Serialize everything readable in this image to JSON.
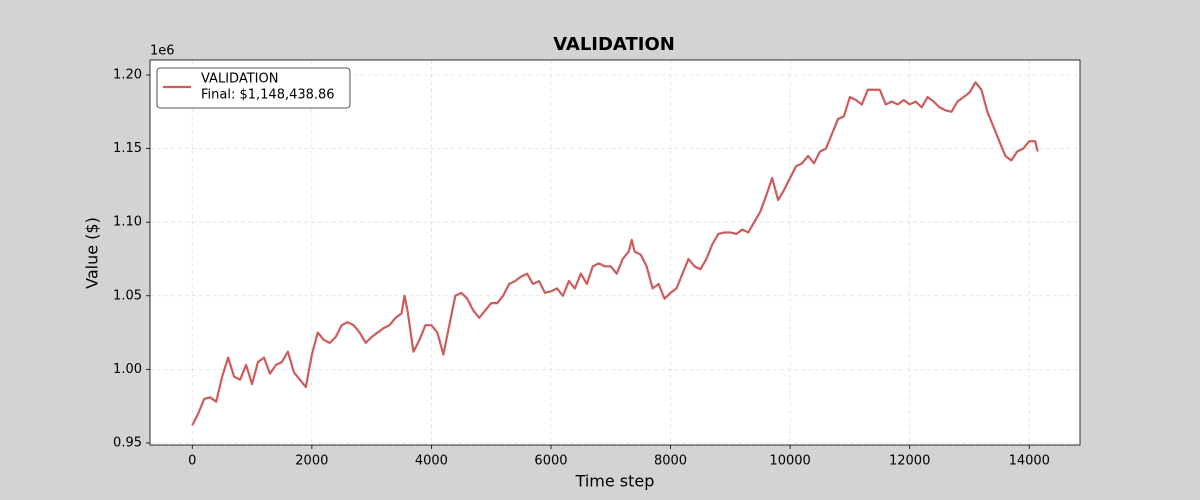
{
  "chart_data": {
    "type": "line",
    "title": "VALIDATION",
    "xlabel": "Time step",
    "ylabel": "Value ($)",
    "y_offset_text": "1e6",
    "legend": "upper left",
    "legend_note": "Final: $1,148,438.86",
    "grid": true,
    "xlim": [
      -707,
      14849
    ],
    "ylim": [
      0.9486,
      1.2102
    ],
    "xticks": [
      0,
      2000,
      4000,
      6000,
      8000,
      10000,
      12000,
      14000
    ],
    "yticks": [
      0.95,
      {
        "value": 1,
        "label": "1.00"
      },
      1.05,
      {
        "value": 1.1,
        "label": "1.10"
      },
      1.15,
      {
        "value": 1.2,
        "label": "1.20"
      }
    ],
    "x": [
      0,
      100,
      200,
      300,
      400,
      500,
      600,
      700,
      800,
      900,
      1000,
      1100,
      1200,
      1300,
      1400,
      1500,
      1600,
      1700,
      1800,
      1900,
      2000,
      2100,
      2200,
      2300,
      2400,
      2500,
      2600,
      2700,
      2800,
      2900,
      3000,
      3100,
      3200,
      3300,
      3400,
      3500,
      3550,
      3600,
      3700,
      3800,
      3900,
      4000,
      4100,
      4200,
      4300,
      4400,
      4500,
      4600,
      4700,
      4800,
      4900,
      5000,
      5100,
      5200,
      5300,
      5400,
      5500,
      5600,
      5700,
      5800,
      5900,
      6000,
      6100,
      6200,
      6300,
      6400,
      6500,
      6600,
      6700,
      6800,
      6900,
      7000,
      7100,
      7200,
      7300,
      7350,
      7400,
      7500,
      7600,
      7700,
      7800,
      7900,
      8000,
      8100,
      8200,
      8300,
      8400,
      8500,
      8600,
      8700,
      8800,
      8900,
      9000,
      9100,
      9200,
      9300,
      9400,
      9500,
      9600,
      9700,
      9800,
      9900,
      10000,
      10100,
      10200,
      10300,
      10400,
      10500,
      10600,
      10700,
      10800,
      10900,
      11000,
      11100,
      11200,
      11300,
      11400,
      11500,
      11600,
      11700,
      11800,
      11900,
      12000,
      12100,
      12200,
      12300,
      12400,
      12500,
      12600,
      12700,
      12800,
      12900,
      13000,
      13100,
      13200,
      13300,
      13400,
      13500,
      13600,
      13700,
      13800,
      13900,
      14000,
      14100,
      14142
    ],
    "series": [
      {
        "name": "VALIDATION",
        "color": "#cd5c5c",
        "values": [
          0.962,
          0.97,
          0.98,
          0.981,
          0.978,
          0.995,
          1.008,
          0.995,
          0.993,
          1.003,
          0.99,
          1.005,
          1.008,
          0.997,
          1.003,
          1.005,
          1.012,
          0.998,
          0.993,
          0.988,
          1.01,
          1.025,
          1.02,
          1.018,
          1.022,
          1.03,
          1.032,
          1.03,
          1.025,
          1.018,
          1.022,
          1.025,
          1.028,
          1.03,
          1.035,
          1.038,
          1.05,
          1.04,
          1.012,
          1.02,
          1.03,
          1.03,
          1.025,
          1.01,
          1.03,
          1.05,
          1.052,
          1.048,
          1.04,
          1.035,
          1.04,
          1.045,
          1.045,
          1.05,
          1.058,
          1.06,
          1.063,
          1.065,
          1.058,
          1.06,
          1.052,
          1.053,
          1.055,
          1.05,
          1.06,
          1.055,
          1.065,
          1.058,
          1.07,
          1.072,
          1.07,
          1.07,
          1.065,
          1.075,
          1.08,
          1.088,
          1.08,
          1.078,
          1.07,
          1.055,
          1.058,
          1.048,
          1.052,
          1.055,
          1.065,
          1.075,
          1.07,
          1.068,
          1.075,
          1.085,
          1.092,
          1.093,
          1.093,
          1.092,
          1.095,
          1.093,
          1.1,
          1.107,
          1.118,
          1.13,
          1.115,
          1.122,
          1.13,
          1.138,
          1.14,
          1.145,
          1.14,
          1.148,
          1.15,
          1.16,
          1.17,
          1.172,
          1.185,
          1.183,
          1.18,
          1.19,
          1.19,
          1.19,
          1.18,
          1.182,
          1.18,
          1.183,
          1.18,
          1.182,
          1.178,
          1.185,
          1.182,
          1.178,
          1.176,
          1.175,
          1.182,
          1.185,
          1.188,
          1.195,
          1.19,
          1.175,
          1.165,
          1.155,
          1.145,
          1.142,
          1.148,
          1.15,
          1.155,
          1.155,
          1.148
        ]
      }
    ]
  }
}
